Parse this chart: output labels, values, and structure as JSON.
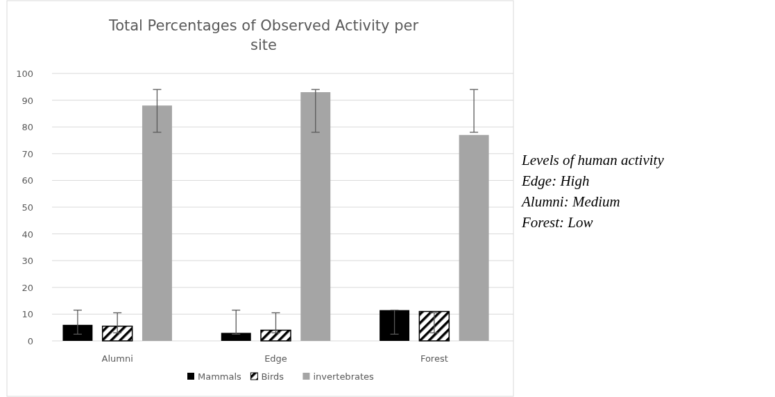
{
  "chart_data": {
    "type": "bar",
    "title": "Total Percentages of Observed Activity per site",
    "categories": [
      "Alumni",
      "Edge",
      "Forest"
    ],
    "series": [
      {
        "name": "Mammals",
        "color": "#000000",
        "values": [
          6,
          3,
          11.5
        ],
        "errors": [
          [
            2.5,
            11.5
          ],
          [
            2.5,
            11.5
          ],
          [
            2.5,
            11.5
          ]
        ]
      },
      {
        "name": "Birds",
        "color": "#000000",
        "values": [
          5.5,
          4,
          11
        ],
        "errors": [
          [
            3,
            10.5
          ],
          [
            3,
            10.5
          ],
          [
            3,
            10.5
          ]
        ]
      },
      {
        "name": "invertebrates",
        "color": "#a5a5a5",
        "values": [
          88,
          93,
          77
        ],
        "errors": [
          [
            78,
            94
          ],
          [
            78,
            94
          ],
          [
            78,
            94
          ]
        ]
      }
    ],
    "ylim": [
      0,
      100
    ],
    "yticks": [
      0,
      10,
      20,
      30,
      40,
      50,
      60,
      70,
      80,
      90,
      100
    ],
    "grid": "y",
    "legend": "bottom",
    "annotations": [
      "Levels of human activity",
      "Edge: High",
      "Alumni: Medium",
      "Forest: Low"
    ]
  }
}
